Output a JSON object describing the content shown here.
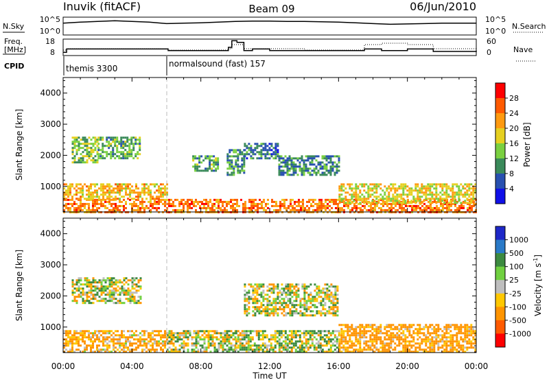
{
  "header": {
    "station": "Inuvik (fitACF)",
    "beam": "Beam 09",
    "date": "06/Jun/2010"
  },
  "top_panel": {
    "left_label": "N.Sky",
    "right_label": "N.Search",
    "left_ticks": [
      "10^5",
      "10^0"
    ],
    "right_ticks": [
      "10^5",
      "10^0"
    ]
  },
  "freq_panel": {
    "left_label_line1": "Freq.",
    "left_label_line2": "[MHz]",
    "right_label": "Nave",
    "left_ticks": [
      "18",
      "8"
    ],
    "right_ticks": [
      "60",
      "0"
    ]
  },
  "cpid_panel": {
    "label": "CPID",
    "programs": [
      {
        "text": "themis 3300",
        "start_hour": 0
      },
      {
        "text": "normalsound (fast) 157",
        "start_hour": 6
      }
    ]
  },
  "range_axis": {
    "label": "Slant Range [km]",
    "ticks": [
      "1000",
      "2000",
      "3000",
      "4000"
    ],
    "range": [
      180,
      4500
    ]
  },
  "time_axis": {
    "label": "Time UT",
    "ticks": [
      "00:00",
      "04:00",
      "08:00",
      "12:00",
      "16:00",
      "20:00",
      "00:00"
    ],
    "range_hours": [
      0,
      24
    ]
  },
  "power_colorbar": {
    "label": "Power [dB]",
    "ticks": [
      "4",
      "8",
      "12",
      "16",
      "20",
      "24",
      "28"
    ],
    "colors": [
      "#1010e8",
      "#2850b0",
      "#3a8a5a",
      "#7ad040",
      "#e6d020",
      "#ff9a10",
      "#ff5a00",
      "#ff0000"
    ]
  },
  "velocity_colorbar": {
    "label": "Velocity [m s",
    "label_sup": "-1",
    "label_end": "]",
    "ticks": [
      "1000",
      "500",
      "100",
      "25",
      "-25",
      "-100",
      "-500",
      "-1000"
    ],
    "colors": [
      "#1e28c8",
      "#2a7ac8",
      "#3c8a40",
      "#70d040",
      "#bebebe",
      "#ffc800",
      "#ff9400",
      "#ff5a00",
      "#ff0000"
    ]
  },
  "chart_data": [
    {
      "type": "line",
      "title": "N.Sky / N.Search",
      "x_hours": [
        0,
        1,
        2,
        3,
        4,
        5,
        6,
        7,
        8,
        9,
        10,
        11,
        12,
        13,
        14,
        15,
        16,
        17,
        18,
        19,
        20,
        21,
        22,
        23,
        24
      ],
      "series": [
        {
          "name": "N.Sky",
          "values": [
            3.3,
            3.6,
            3.8,
            4.0,
            3.8,
            3.6,
            3.2,
            3.3,
            3.4,
            3.6,
            3.8,
            3.9,
            3.9,
            3.8,
            3.8,
            3.7,
            3.6,
            3.4,
            3.2,
            3.0,
            3.1,
            3.2,
            3.3,
            3.3,
            3.3
          ]
        }
      ],
      "ylim": [
        0,
        5
      ]
    },
    {
      "type": "line",
      "title": "Freq. / Nave",
      "x_hours": [
        0,
        0.2,
        6,
        6.1,
        9.6,
        9.8,
        10.1,
        10.5,
        11,
        12,
        14,
        16,
        17.5,
        18.5,
        20,
        21.5,
        22,
        24
      ],
      "series": [
        {
          "name": "Freq.",
          "values": [
            10,
            12,
            12,
            11,
            13,
            17,
            16,
            11,
            12,
            11,
            11,
            11,
            12,
            11,
            12,
            10.5,
            10.5,
            11
          ]
        },
        {
          "name": "Nave",
          "values": [
            20,
            25,
            25,
            20,
            25,
            40,
            40,
            25,
            25,
            25,
            20,
            20,
            40,
            45,
            40,
            25,
            25,
            25
          ]
        }
      ],
      "ylim": [
        8,
        18
      ]
    },
    {
      "type": "heatmap",
      "title": "Power [dB]",
      "xlabel": "Time UT",
      "ylabel": "Slant Range [km]",
      "xlim_hours": [
        0,
        24
      ],
      "ylim_km": [
        180,
        4500
      ],
      "value_range_db": [
        0,
        30
      ],
      "bands": [
        {
          "start_hour": 0.0,
          "end_hour": 24.0,
          "range_km": [
            180,
            600
          ],
          "level_db": 24
        },
        {
          "start_hour": 0.0,
          "end_hour": 6.0,
          "range_km": [
            600,
            1100
          ],
          "level_db": 20
        },
        {
          "start_hour": 0.5,
          "end_hour": 2.0,
          "range_km": [
            1800,
            2600
          ],
          "level_db": 14
        },
        {
          "start_hour": 2.0,
          "end_hour": 4.5,
          "range_km": [
            1900,
            2600
          ],
          "level_db": 12
        },
        {
          "start_hour": 7.5,
          "end_hour": 9.0,
          "range_km": [
            1500,
            2000
          ],
          "level_db": 12
        },
        {
          "start_hour": 9.5,
          "end_hour": 10.5,
          "range_km": [
            1400,
            2200
          ],
          "level_db": 10
        },
        {
          "start_hour": 10.5,
          "end_hour": 12.5,
          "range_km": [
            1900,
            2400
          ],
          "level_db": 8
        },
        {
          "start_hour": 12.5,
          "end_hour": 16.0,
          "range_km": [
            1400,
            2000
          ],
          "level_db": 10
        },
        {
          "start_hour": 16.0,
          "end_hour": 24.0,
          "range_km": [
            500,
            1100
          ],
          "level_db": 18
        }
      ]
    },
    {
      "type": "heatmap",
      "title": "Velocity",
      "xlabel": "Time UT",
      "ylabel": "Slant Range [km]",
      "xlim_hours": [
        0,
        24
      ],
      "ylim_km": [
        180,
        4500
      ],
      "value_range_mps": [
        -1000,
        1000
      ],
      "bands": [
        {
          "start_hour": 0.0,
          "end_hour": 6.0,
          "range_km": [
            180,
            900
          ],
          "level_mps": -150
        },
        {
          "start_hour": 6.0,
          "end_hour": 10.0,
          "range_km": [
            180,
            900
          ],
          "level_mps": 0
        },
        {
          "start_hour": 10.0,
          "end_hour": 16.0,
          "range_km": [
            180,
            900
          ],
          "level_mps": 50
        },
        {
          "start_hour": 16.0,
          "end_hour": 24.0,
          "range_km": [
            180,
            1100
          ],
          "level_mps": -200
        },
        {
          "start_hour": 0.5,
          "end_hour": 4.5,
          "range_km": [
            1800,
            2600
          ],
          "level_mps": 0
        },
        {
          "start_hour": 10.5,
          "end_hour": 16.0,
          "range_km": [
            1400,
            2400
          ],
          "level_mps": 0
        }
      ]
    }
  ]
}
